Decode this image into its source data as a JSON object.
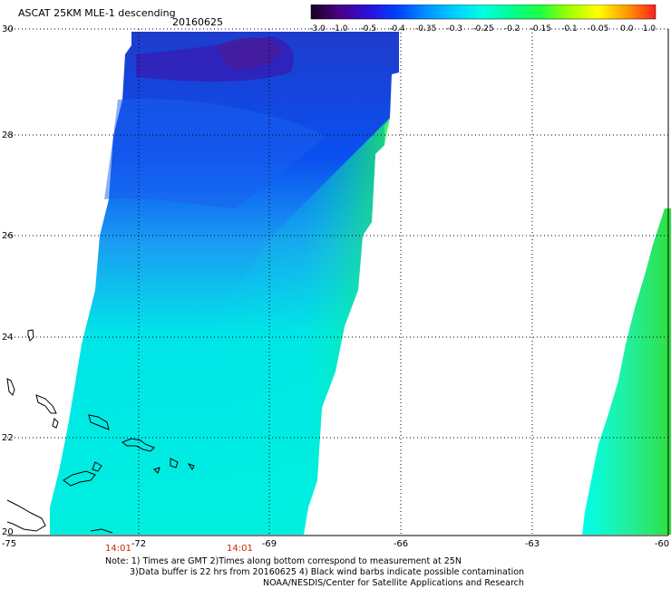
{
  "header": {
    "title": "ASCAT 25KM MLE-1 descending",
    "date": "20160625"
  },
  "colorbar": {
    "labels": [
      "-3.0",
      "-1.0",
      "-0.5",
      "-0.4",
      "-0.35",
      "-0.3",
      "-0.25",
      "-0.2",
      "-0.15",
      "-0.1",
      "-0.05",
      "0.0",
      "1.0"
    ],
    "colors": [
      "#1a0020",
      "#4a0088",
      "#2a10d8",
      "#0040ff",
      "#0090ff",
      "#00d0ff",
      "#00ffe0",
      "#00ff90",
      "#20ff40",
      "#a0ff00",
      "#ffff00",
      "#ff9900",
      "#ff2020"
    ]
  },
  "axes": {
    "lon_labels": [
      "-75",
      "-72",
      "-69",
      "-66",
      "-63",
      "-60"
    ],
    "lat_labels": [
      "30",
      "28",
      "26",
      "24",
      "22",
      "20"
    ]
  },
  "pass_times": [
    "14:01",
    "14:01"
  ],
  "notes": {
    "line1": "Note: 1) Times are GMT 2)Times along bottom correspond to measurement at 25N",
    "line2": "3)Data buffer is 22 hrs from 20160625 4) Black wind barbs indicate possible contamination",
    "line3": "NOAA/NESDIS/Center for Satellite Applications and Research"
  }
}
